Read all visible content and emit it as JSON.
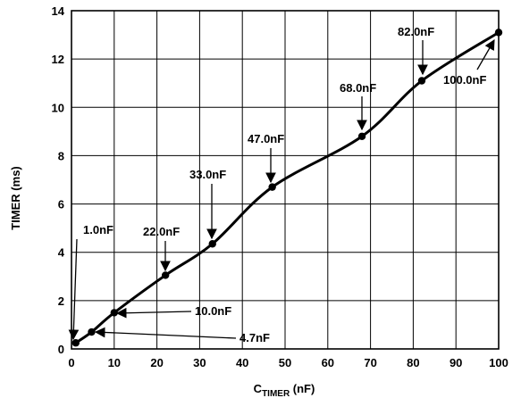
{
  "chart_data": {
    "type": "line",
    "xlabel_main": "C",
    "xlabel_sub": "TIMER",
    "xlabel_unit": " (nF)",
    "ylabel": "TIMER (ms)",
    "xlim": [
      0,
      100
    ],
    "ylim": [
      0,
      14
    ],
    "x_ticks": [
      0,
      10,
      20,
      30,
      40,
      50,
      60,
      70,
      80,
      90,
      100
    ],
    "y_ticks": [
      0,
      2,
      4,
      6,
      8,
      10,
      12,
      14
    ],
    "grid": true,
    "x_tick_labels": [
      "0",
      "10",
      "20",
      "30",
      "40",
      "50",
      "60",
      "70",
      "80",
      "90",
      "100"
    ],
    "y_tick_labels": [
      "0",
      "2",
      "4",
      "6",
      "8",
      "10",
      "12",
      "14"
    ],
    "series": [
      {
        "x": [
          1,
          4.7,
          10,
          22,
          33,
          47,
          68,
          82,
          100
        ],
        "y": [
          0.25,
          0.7,
          1.5,
          3.05,
          4.35,
          6.7,
          8.8,
          11.1,
          13.1
        ]
      }
    ],
    "annotations": [
      {
        "label": "1.0nF",
        "x": 1,
        "y": 0.25
      },
      {
        "label": "4.7nF",
        "x": 4.7,
        "y": 0.7
      },
      {
        "label": "10.0nF",
        "x": 10,
        "y": 1.5
      },
      {
        "label": "22.0nF",
        "x": 22,
        "y": 3.05
      },
      {
        "label": "33.0nF",
        "x": 33,
        "y": 4.35
      },
      {
        "label": "47.0nF",
        "x": 47,
        "y": 6.7
      },
      {
        "label": "68.0nF",
        "x": 68,
        "y": 8.8
      },
      {
        "label": "82.0nF",
        "x": 82,
        "y": 11.1
      },
      {
        "label": "100.0nF",
        "x": 100,
        "y": 13.1
      }
    ]
  }
}
